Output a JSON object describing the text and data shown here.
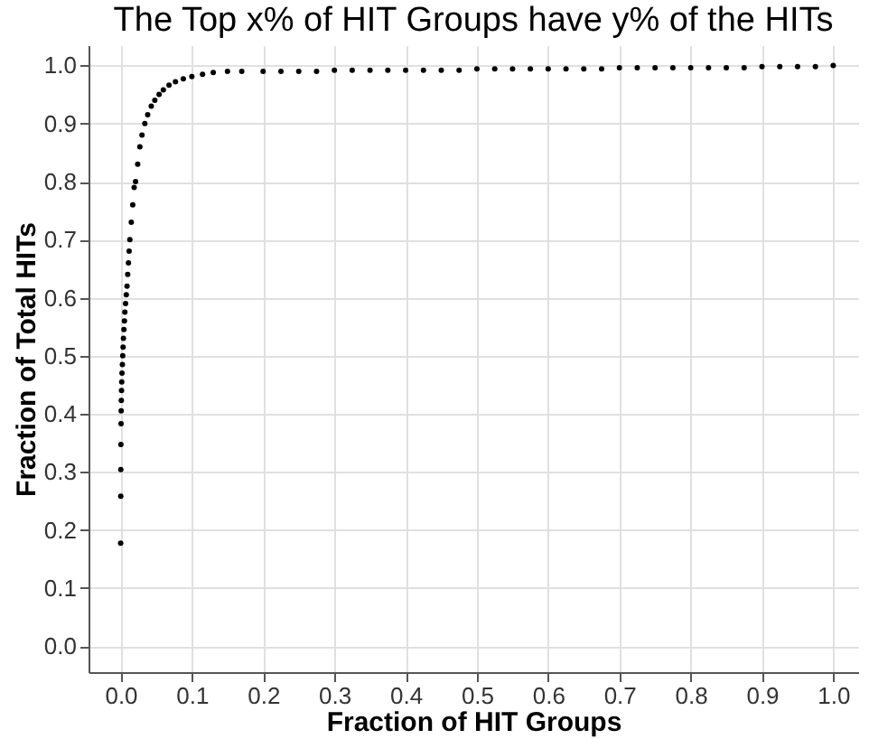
{
  "chart_data": {
    "type": "scatter",
    "title": "The Top x% of HIT Groups have y% of the HITs",
    "xlabel": "Fraction of HIT Groups",
    "ylabel": "Fraction of Total HITs",
    "xlim": [
      -0.045,
      1.035
    ],
    "ylim": [
      -0.045,
      1.035
    ],
    "xticks": [
      {
        "value": 0,
        "label": "0.0"
      },
      0.1,
      0.2,
      0.3,
      0.4,
      0.5,
      0.6,
      0.7,
      0.8,
      0.9,
      {
        "value": 1,
        "label": "1.0"
      }
    ],
    "yticks": [
      {
        "value": 0,
        "label": "0.0"
      },
      0.1,
      0.2,
      0.3,
      0.4,
      0.5,
      0.6,
      0.7,
      0.8,
      0.9,
      {
        "value": 1,
        "label": "1.0"
      }
    ],
    "grid": true,
    "marker": "circle",
    "series": [
      {
        "color": "#000000",
        "x": [
          0.0001,
          0.0002,
          0.0003,
          0.0004,
          0.0006,
          0.0008,
          0.001,
          0.0013,
          0.0016,
          0.002,
          0.0025,
          0.003,
          0.0035,
          0.004,
          0.0047,
          0.0054,
          0.006,
          0.007,
          0.008,
          0.009,
          0.01,
          0.011,
          0.012,
          0.013,
          0.015,
          0.017,
          0.019,
          0.021,
          0.024,
          0.027,
          0.03,
          0.034,
          0.038,
          0.043,
          0.048,
          0.054,
          0.06,
          0.068,
          0.077,
          0.088,
          0.1,
          0.115,
          0.13,
          0.15,
          0.17,
          0.2,
          0.225,
          0.25,
          0.275,
          0.3,
          0.325,
          0.35,
          0.375,
          0.4,
          0.425,
          0.45,
          0.475,
          0.5,
          0.525,
          0.55,
          0.575,
          0.6,
          0.625,
          0.65,
          0.675,
          0.7,
          0.725,
          0.75,
          0.775,
          0.8,
          0.825,
          0.85,
          0.875,
          0.9,
          0.925,
          0.95,
          0.975,
          1.0
        ],
        "values": [
          0.177,
          0.258,
          0.304,
          0.347,
          0.383,
          0.405,
          0.423,
          0.44,
          0.455,
          0.47,
          0.485,
          0.5,
          0.515,
          0.53,
          0.545,
          0.56,
          0.575,
          0.59,
          0.605,
          0.62,
          0.64,
          0.66,
          0.68,
          0.7,
          0.73,
          0.76,
          0.79,
          0.8,
          0.83,
          0.86,
          0.88,
          0.9,
          0.915,
          0.93,
          0.94,
          0.95,
          0.958,
          0.966,
          0.972,
          0.977,
          0.981,
          0.985,
          0.988,
          0.99,
          0.99,
          0.99,
          0.99,
          0.99,
          0.99,
          0.992,
          0.992,
          0.992,
          0.992,
          0.992,
          0.992,
          0.992,
          0.992,
          0.994,
          0.994,
          0.994,
          0.994,
          0.994,
          0.994,
          0.994,
          0.994,
          0.996,
          0.996,
          0.996,
          0.996,
          0.996,
          0.996,
          0.996,
          0.996,
          0.998,
          0.998,
          0.998,
          0.998,
          1.0
        ]
      }
    ]
  }
}
